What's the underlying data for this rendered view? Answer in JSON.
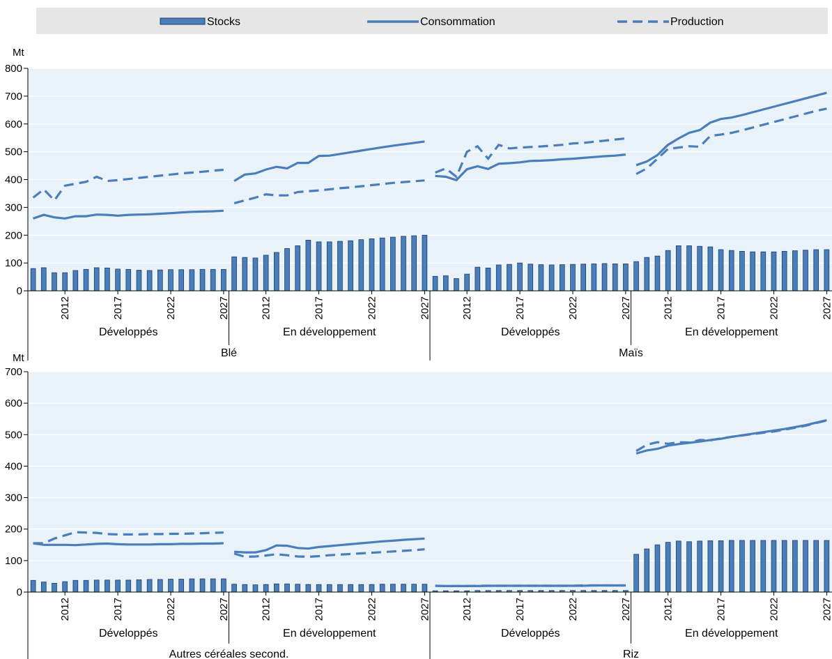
{
  "legend": {
    "stocks": "Stocks",
    "consumption": "Consommation",
    "production": "Production"
  },
  "colors": {
    "series": "#4a7ebb",
    "bar_outline": "#1f3b66",
    "plot_bg": "#e9f2f9",
    "legend_bg": "#e6e6e6"
  },
  "chart_data": [
    {
      "type": "bar",
      "unit": "Mt",
      "ylim": [
        0,
        800
      ],
      "yticks": [
        0,
        100,
        200,
        300,
        400,
        500,
        600,
        700,
        800
      ],
      "year_ticks": [
        "2012",
        "2017",
        "2022",
        "2027"
      ],
      "years": [
        2009,
        2010,
        2011,
        2012,
        2013,
        2014,
        2015,
        2016,
        2017,
        2018,
        2019,
        2020,
        2021,
        2022,
        2023,
        2024,
        2025,
        2026,
        2027
      ],
      "groups": [
        {
          "commodity": "Blé",
          "region": "Développés",
          "stocks": [
            80,
            83,
            65,
            65,
            73,
            77,
            83,
            82,
            78,
            77,
            74,
            73,
            75,
            76,
            76,
            76,
            77,
            77,
            77
          ],
          "consumption": [
            260,
            273,
            264,
            260,
            268,
            268,
            274,
            273,
            270,
            273,
            274,
            275,
            277,
            279,
            282,
            284,
            285,
            286,
            288
          ],
          "production": [
            335,
            365,
            325,
            378,
            385,
            392,
            410,
            395,
            398,
            402,
            406,
            410,
            414,
            418,
            422,
            425,
            428,
            432,
            435
          ]
        },
        {
          "commodity": "Blé",
          "region": "En développement",
          "stocks": [
            122,
            120,
            118,
            128,
            138,
            152,
            162,
            182,
            176,
            176,
            178,
            180,
            184,
            187,
            190,
            193,
            196,
            198,
            200
          ],
          "consumption": [
            395,
            418,
            422,
            436,
            446,
            440,
            460,
            460,
            485,
            486,
            492,
            498,
            504,
            510,
            516,
            522,
            527,
            532,
            537
          ],
          "production": [
            315,
            325,
            335,
            347,
            343,
            343,
            355,
            358,
            361,
            365,
            369,
            372,
            376,
            380,
            384,
            388,
            391,
            394,
            397
          ]
        },
        {
          "commodity": "Maïs",
          "region": "Développés",
          "stocks": [
            52,
            54,
            44,
            60,
            85,
            82,
            93,
            95,
            100,
            96,
            94,
            93,
            94,
            95,
            96,
            97,
            98,
            97,
            97
          ],
          "consumption": [
            413,
            410,
            398,
            437,
            448,
            438,
            457,
            459,
            462,
            467,
            468,
            470,
            473,
            475,
            478,
            481,
            484,
            486,
            490
          ],
          "production": [
            425,
            440,
            410,
            500,
            520,
            475,
            525,
            512,
            515,
            517,
            519,
            522,
            525,
            530,
            532,
            536,
            540,
            544,
            548
          ]
        },
        {
          "commodity": "Maïs",
          "region": "En développement",
          "stocks": [
            105,
            120,
            125,
            145,
            162,
            162,
            160,
            158,
            148,
            145,
            142,
            140,
            140,
            140,
            142,
            144,
            146,
            148,
            148
          ],
          "consumption": [
            452,
            465,
            488,
            525,
            548,
            568,
            578,
            605,
            618,
            623,
            632,
            642,
            652,
            662,
            672,
            682,
            692,
            702,
            712
          ],
          "production": [
            420,
            440,
            475,
            510,
            515,
            520,
            518,
            557,
            562,
            568,
            577,
            587,
            597,
            607,
            617,
            627,
            637,
            647,
            655
          ]
        },
        {
          "commodity": "Autres céréales second.",
          "region": "Développés",
          "stocks": [
            37,
            32,
            28,
            33,
            37,
            37,
            38,
            38,
            38,
            38,
            39,
            40,
            40,
            41,
            41,
            42,
            42,
            42,
            42
          ],
          "consumption": [
            155,
            150,
            150,
            150,
            149,
            151,
            153,
            154,
            152,
            151,
            151,
            151,
            152,
            152,
            153,
            153,
            154,
            154,
            155
          ],
          "production": [
            155,
            155,
            170,
            180,
            190,
            189,
            188,
            184,
            183,
            183,
            183,
            184,
            184,
            185,
            185,
            186,
            187,
            188,
            189
          ]
        },
        {
          "commodity": "Autres céréales second.",
          "region": "En développement",
          "stocks": [
            25,
            24,
            23,
            24,
            26,
            26,
            25,
            24,
            24,
            24,
            24,
            24,
            24,
            24,
            25,
            25,
            25,
            25,
            25
          ],
          "consumption": [
            128,
            126,
            126,
            133,
            148,
            147,
            140,
            138,
            143,
            146,
            149,
            152,
            155,
            158,
            161,
            163,
            166,
            168,
            170
          ],
          "production": [
            122,
            112,
            113,
            116,
            120,
            117,
            113,
            112,
            114,
            117,
            119,
            121,
            123,
            125,
            127,
            129,
            131,
            133,
            136
          ]
        },
        {
          "commodity": "Riz",
          "region": "Développés",
          "stocks": [
            4,
            4,
            4,
            4,
            5,
            5,
            5,
            5,
            5,
            5,
            5,
            5,
            5,
            5,
            5,
            5,
            5,
            5,
            5
          ],
          "consumption": [
            20,
            19,
            19,
            19,
            19,
            20,
            20,
            20,
            20,
            20,
            20,
            20,
            20,
            20,
            20,
            21,
            21,
            21,
            21
          ],
          "production": [
            20,
            19,
            19,
            19,
            20,
            20,
            20,
            20,
            20,
            20,
            20,
            20,
            20,
            20,
            21,
            21,
            21,
            21,
            21
          ]
        },
        {
          "commodity": "Riz",
          "region": "En développement",
          "stocks": [
            120,
            137,
            150,
            158,
            162,
            160,
            162,
            163,
            163,
            164,
            164,
            164,
            164,
            164,
            164,
            164,
            164,
            164,
            164
          ],
          "consumption": [
            440,
            450,
            455,
            465,
            470,
            474,
            478,
            483,
            487,
            493,
            498,
            503,
            508,
            513,
            518,
            524,
            530,
            538,
            546
          ],
          "production": [
            448,
            468,
            476,
            471,
            476,
            475,
            483,
            482,
            488,
            493,
            497,
            502,
            506,
            510,
            516,
            522,
            528,
            537,
            545
          ]
        }
      ]
    }
  ],
  "panels": [
    {
      "unit": "Mt",
      "ymax": 800,
      "yticks": [
        0,
        100,
        200,
        300,
        400,
        500,
        600,
        700,
        800
      ],
      "region_labels": [
        "Développés",
        "En développement",
        "Développés",
        "En développement"
      ],
      "commodity_labels": [
        "Blé",
        "Maïs"
      ]
    },
    {
      "unit": "Mt",
      "ymax": 700,
      "yticks": [
        0,
        100,
        200,
        300,
        400,
        500,
        600,
        700
      ],
      "region_labels": [
        "Développés",
        "En développement",
        "Développés",
        "En développement"
      ],
      "commodity_labels": [
        "Autres céréales second.",
        "Riz"
      ]
    }
  ]
}
